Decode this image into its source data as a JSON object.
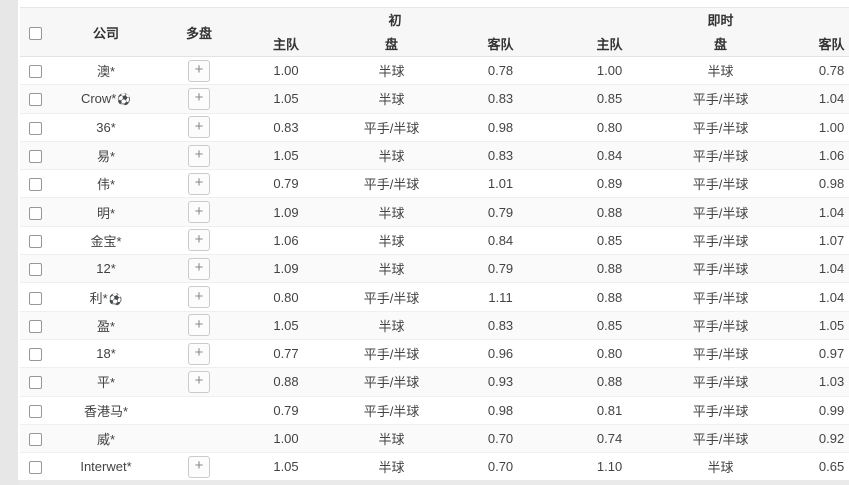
{
  "colors": {
    "page_background": "#eaeaea",
    "panel_background": "#ffffff",
    "header_background": "#f7f7f7",
    "alt_row_background": "#fafafa",
    "row_border": "#efefef",
    "text": "#434343"
  },
  "icons": {
    "plus": "+",
    "soccer_ball": "⚽"
  },
  "table": {
    "header": {
      "company": "公司",
      "multi": "多盘",
      "group_initial": "初",
      "group_live": "即时",
      "sub_home": "主队",
      "sub_handicap": "盘",
      "sub_away": "客队"
    },
    "rows": [
      {
        "company": "澳*",
        "ball": false,
        "plus": true,
        "init_home": "1.00",
        "init_pan": "半球",
        "init_away": "0.78",
        "live_home": "1.00",
        "live_pan": "半球",
        "live_away": "0.78"
      },
      {
        "company": "Crow*",
        "ball": true,
        "plus": true,
        "init_home": "1.05",
        "init_pan": "半球",
        "init_away": "0.83",
        "live_home": "0.85",
        "live_pan": "平手/半球",
        "live_away": "1.04"
      },
      {
        "company": "36*",
        "ball": false,
        "plus": true,
        "init_home": "0.83",
        "init_pan": "平手/半球",
        "init_away": "0.98",
        "live_home": "0.80",
        "live_pan": "平手/半球",
        "live_away": "1.00"
      },
      {
        "company": "易*",
        "ball": false,
        "plus": true,
        "init_home": "1.05",
        "init_pan": "半球",
        "init_away": "0.83",
        "live_home": "0.84",
        "live_pan": "平手/半球",
        "live_away": "1.06"
      },
      {
        "company": "伟*",
        "ball": false,
        "plus": true,
        "init_home": "0.79",
        "init_pan": "平手/半球",
        "init_away": "1.01",
        "live_home": "0.89",
        "live_pan": "平手/半球",
        "live_away": "0.98"
      },
      {
        "company": "明*",
        "ball": false,
        "plus": true,
        "init_home": "1.09",
        "init_pan": "半球",
        "init_away": "0.79",
        "live_home": "0.88",
        "live_pan": "平手/半球",
        "live_away": "1.04"
      },
      {
        "company": "金宝*",
        "ball": false,
        "plus": true,
        "init_home": "1.06",
        "init_pan": "半球",
        "init_away": "0.84",
        "live_home": "0.85",
        "live_pan": "平手/半球",
        "live_away": "1.07"
      },
      {
        "company": "12*",
        "ball": false,
        "plus": true,
        "init_home": "1.09",
        "init_pan": "半球",
        "init_away": "0.79",
        "live_home": "0.88",
        "live_pan": "平手/半球",
        "live_away": "1.04"
      },
      {
        "company": "利*",
        "ball": true,
        "plus": true,
        "init_home": "0.80",
        "init_pan": "平手/半球",
        "init_away": "1.11",
        "live_home": "0.88",
        "live_pan": "平手/半球",
        "live_away": "1.04"
      },
      {
        "company": "盈*",
        "ball": false,
        "plus": true,
        "init_home": "1.05",
        "init_pan": "半球",
        "init_away": "0.83",
        "live_home": "0.85",
        "live_pan": "平手/半球",
        "live_away": "1.05"
      },
      {
        "company": "18*",
        "ball": false,
        "plus": true,
        "init_home": "0.77",
        "init_pan": "平手/半球",
        "init_away": "0.96",
        "live_home": "0.80",
        "live_pan": "平手/半球",
        "live_away": "0.97"
      },
      {
        "company": "平*",
        "ball": false,
        "plus": true,
        "init_home": "0.88",
        "init_pan": "平手/半球",
        "init_away": "0.93",
        "live_home": "0.88",
        "live_pan": "平手/半球",
        "live_away": "1.03"
      },
      {
        "company": "香港马*",
        "ball": false,
        "plus": false,
        "init_home": "0.79",
        "init_pan": "平手/半球",
        "init_away": "0.98",
        "live_home": "0.81",
        "live_pan": "平手/半球",
        "live_away": "0.99"
      },
      {
        "company": "威*",
        "ball": false,
        "plus": false,
        "init_home": "1.00",
        "init_pan": "半球",
        "init_away": "0.70",
        "live_home": "0.74",
        "live_pan": "平手/半球",
        "live_away": "0.92"
      },
      {
        "company": "Interwet*",
        "ball": false,
        "plus": true,
        "init_home": "1.05",
        "init_pan": "半球",
        "init_away": "0.70",
        "live_home": "1.10",
        "live_pan": "半球",
        "live_away": "0.65"
      }
    ]
  }
}
